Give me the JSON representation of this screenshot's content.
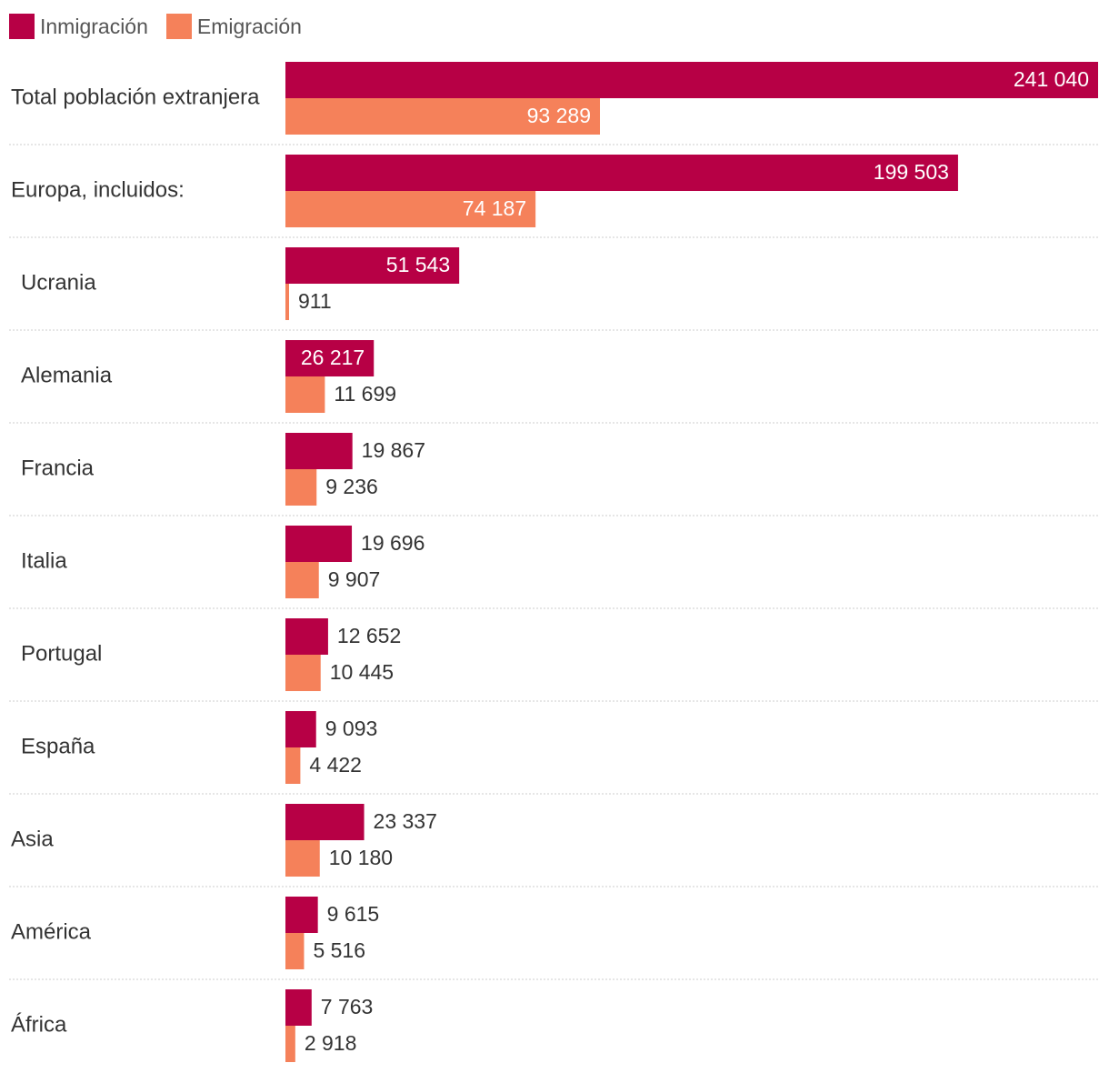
{
  "legend": {
    "inmigracion": "Inmigración",
    "emigracion": "Emigración"
  },
  "colors": {
    "inmigracion": "#b70045",
    "emigracion": "#f5815a",
    "label_dark": "#333333",
    "label_light": "#ffffff",
    "divider": "#cccccc"
  },
  "chart_data": {
    "type": "bar",
    "orientation": "horizontal",
    "categories": [
      "Total población extranjera",
      "Europa, incluidos:",
      "Ucrania",
      "Alemania",
      "Francia",
      "Italia",
      "Portugal",
      "España",
      "Asia",
      "América",
      "África"
    ],
    "indent": [
      false,
      false,
      true,
      true,
      true,
      true,
      true,
      true,
      false,
      false,
      false
    ],
    "series": [
      {
        "name": "Inmigración",
        "values": [
          241040,
          199503,
          51543,
          26217,
          19867,
          19696,
          12652,
          9093,
          23337,
          9615,
          7763
        ]
      },
      {
        "name": "Emigración",
        "values": [
          93289,
          74187,
          911,
          11699,
          9236,
          9907,
          10445,
          4422,
          10180,
          5516,
          2918
        ]
      }
    ],
    "labels": [
      [
        "241 040",
        "199 503",
        "51 543",
        "26 217",
        "19 867",
        "19 696",
        "12 652",
        "9 093",
        "23 337",
        "9 615",
        "7 763"
      ],
      [
        "93 289",
        "74 187",
        "911",
        "11 699",
        "9 236",
        "9 907",
        "10 445",
        "4 422",
        "10 180",
        "5 516",
        "2 918"
      ]
    ],
    "xlim": [
      0,
      241040
    ],
    "legend_position": "top-left",
    "title": "",
    "xlabel": "",
    "ylabel": ""
  }
}
